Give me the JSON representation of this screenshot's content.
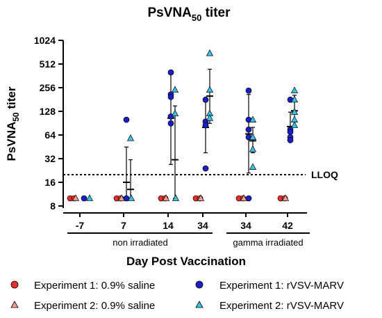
{
  "chart_data": {
    "type": "scatter",
    "title_main": "PsVNA",
    "title_sub": "50",
    "title_suffix": " titer",
    "ylabel_main": "PsVNA",
    "ylabel_sub": "50",
    "ylabel_suffix": " titer",
    "xlabel": "Day Post Vaccination",
    "y_scale": "log2",
    "ylim": [
      8,
      1024
    ],
    "y_ticks": [
      "8",
      "16",
      "32",
      "64",
      "128",
      "256",
      "512",
      "1024"
    ],
    "categories": [
      "-7",
      "7",
      "14",
      "34",
      "34",
      "42"
    ],
    "groups": [
      {
        "label": "non irradiated",
        "categories": [
          0,
          1,
          2,
          3
        ]
      },
      {
        "label": "gamma irradiated",
        "categories": [
          4,
          5
        ]
      }
    ],
    "reference_line": {
      "label": "LLOQ",
      "value": 20
    },
    "legend_position": "bottom",
    "series": [
      {
        "name": "Experiment 1: 0.9% saline",
        "marker": "circle",
        "color": "#e8302b",
        "points": [
          [
            0,
            10
          ],
          [
            0,
            10
          ],
          [
            1,
            10
          ],
          [
            1,
            10
          ],
          [
            2,
            10
          ],
          [
            2,
            10
          ],
          [
            3,
            10
          ],
          [
            3,
            10
          ],
          [
            4,
            10
          ],
          [
            4,
            10
          ],
          [
            5,
            10
          ],
          [
            5,
            10
          ]
        ]
      },
      {
        "name": "Experiment 2: 0.9% saline",
        "marker": "triangle",
        "color": "#f29b8c",
        "points": [
          [
            0,
            10
          ],
          [
            1,
            10
          ],
          [
            2,
            10
          ],
          [
            3,
            10
          ],
          [
            4,
            10
          ],
          [
            5,
            10
          ]
        ]
      },
      {
        "name": "Experiment 1: rVSV-MARV",
        "marker": "circle",
        "color": "#1a1fc4",
        "points": [
          [
            0,
            10
          ],
          [
            1,
            10
          ],
          [
            1,
            100
          ],
          [
            2,
            400
          ],
          [
            2,
            210
          ],
          [
            2,
            195
          ],
          [
            2,
            110
          ],
          [
            2,
            90
          ],
          [
            3,
            180
          ],
          [
            3,
            95
          ],
          [
            3,
            85
          ],
          [
            3,
            24
          ],
          [
            4,
            235
          ],
          [
            4,
            100
          ],
          [
            4,
            75
          ],
          [
            4,
            60
          ],
          [
            4,
            10
          ],
          [
            5,
            180
          ],
          [
            5,
            75
          ],
          [
            5,
            70
          ],
          [
            5,
            60
          ],
          [
            5,
            55
          ]
        ]
      },
      {
        "name": "Experiment 2: rVSV-MARV",
        "marker": "triangle",
        "color": "#3ec0e6",
        "points": [
          [
            0,
            10
          ],
          [
            1,
            58
          ],
          [
            1,
            10
          ],
          [
            2,
            240
          ],
          [
            2,
            120
          ],
          [
            2,
            10
          ],
          [
            3,
            700
          ],
          [
            3,
            240
          ],
          [
            3,
            120
          ],
          [
            3,
            105
          ],
          [
            4,
            100
          ],
          [
            4,
            60
          ],
          [
            4,
            42
          ],
          [
            4,
            25
          ],
          [
            5,
            235
          ],
          [
            5,
            180
          ],
          [
            5,
            125
          ],
          [
            5,
            100
          ],
          [
            5,
            85
          ]
        ]
      }
    ],
    "error_bars": [
      {
        "category": 1,
        "series": 2,
        "mean": 16,
        "low": 10,
        "high": 45
      },
      {
        "category": 1,
        "series": 3,
        "mean": 13,
        "low": 10,
        "high": 31
      },
      {
        "category": 2,
        "series": 2,
        "mean": 105,
        "low": 27,
        "high": 420
      },
      {
        "category": 2,
        "series": 3,
        "mean": 31,
        "low": 10,
        "high": 150
      },
      {
        "category": 3,
        "series": 2,
        "mean": 80,
        "low": 38,
        "high": 170
      },
      {
        "category": 3,
        "series": 3,
        "mean": 200,
        "low": 90,
        "high": 440
      },
      {
        "category": 4,
        "series": 2,
        "mean": 66,
        "low": 21,
        "high": 210
      },
      {
        "category": 4,
        "series": 3,
        "mean": 54,
        "low": 38,
        "high": 80
      },
      {
        "category": 5,
        "series": 2,
        "mean": 82,
        "low": 55,
        "high": 125
      },
      {
        "category": 5,
        "series": 3,
        "mean": 130,
        "low": 95,
        "high": 205
      }
    ]
  }
}
